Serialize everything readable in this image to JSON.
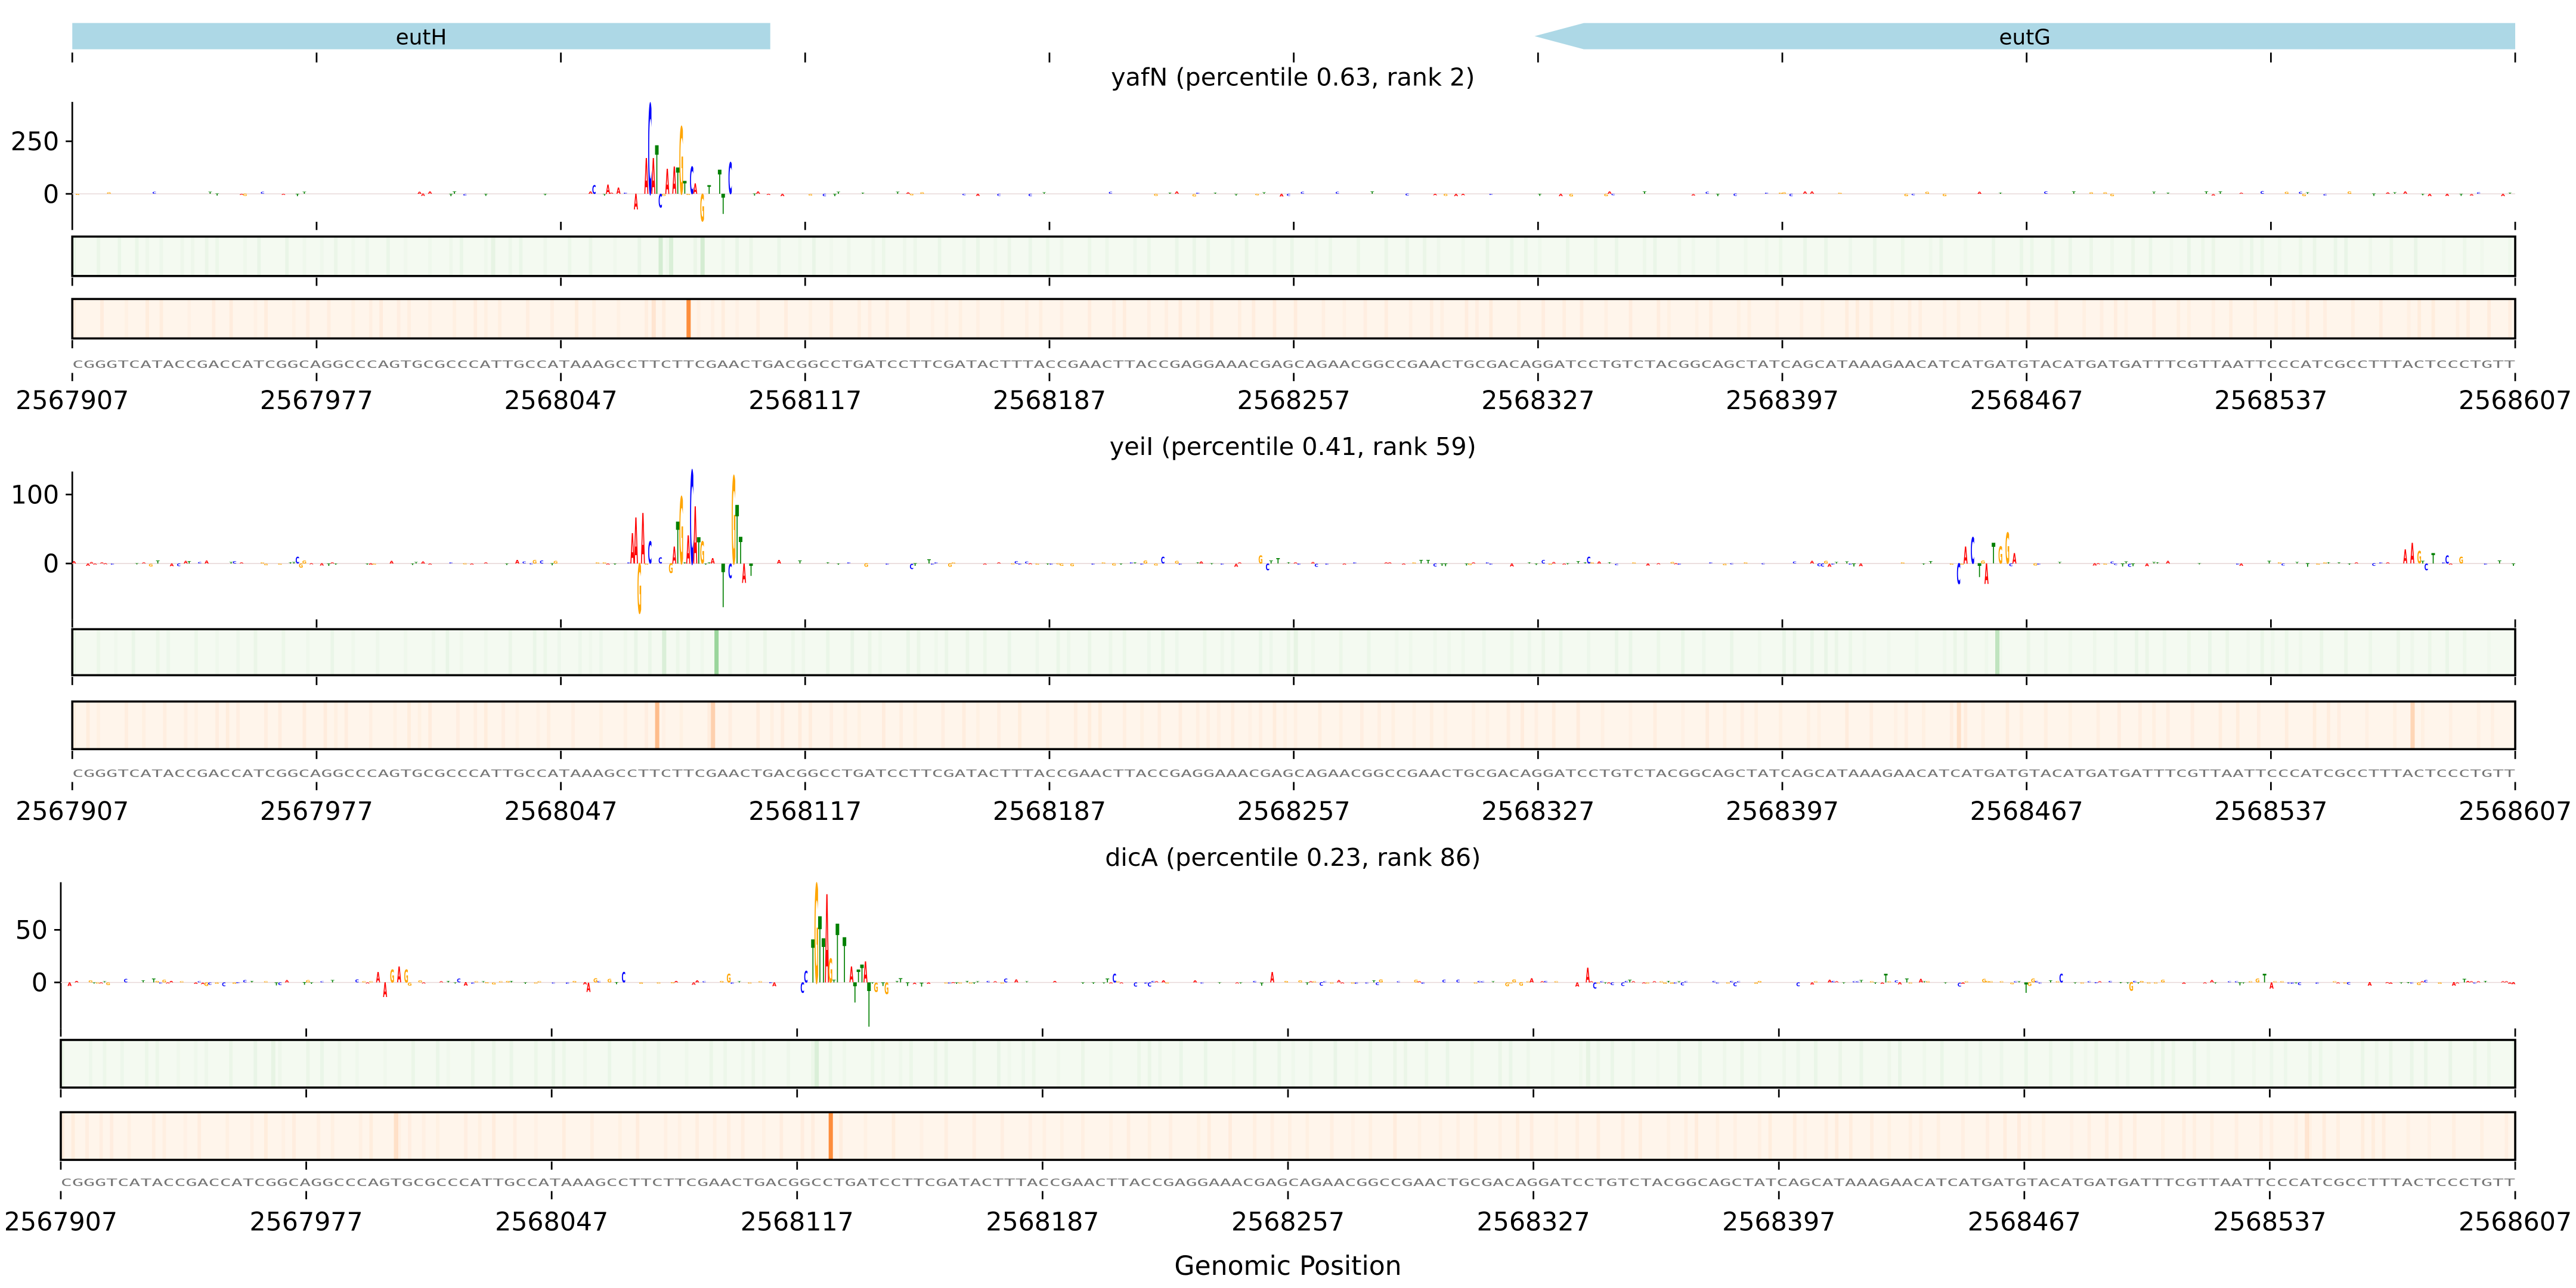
{
  "chart_data": {
    "type": "sequence-logo-tracks",
    "xlabel": "Genomic Position",
    "xlim": [
      2567907,
      2568607
    ],
    "x_ticks": [
      "2567907",
      "2567977",
      "2568047",
      "2568117",
      "2568187",
      "2568257",
      "2568327",
      "2568397",
      "2568467",
      "2568537",
      "2568607"
    ],
    "base_colors": {
      "A": "#ff0000",
      "C": "#0000ff",
      "G": "#ffa500",
      "T": "#008000"
    },
    "genes": [
      {
        "name": "eutH",
        "start_offset": 0,
        "end_offset": 200,
        "strand": "+",
        "color": "#add8e6"
      },
      {
        "name": "eutG",
        "start_offset": 419,
        "end_offset": 700,
        "strand": "-",
        "color": "#add8e6"
      }
    ],
    "sequence_text": "CGGGTCATACCGACCATCGGCAGGCCCAGTGCGCCCATTGCCATAAAGCCTTCTTCGAACTGACGGCCTGATCCTTCGATACTTTACCGAACTTACCGAGGAAACGAGCAGAACGGCCGAACTGCGACAGGATCCTGTCTACGGCAGCTATCAGCATAAAGAACATCATGATGTACATGATGATTTCGTTAATTCCCATCGCCTTTACTCCCTGTT",
    "panels": [
      {
        "title": "yafN (percentile 0.63, rank 2)",
        "yticks": [
          250,
          0
        ],
        "ytick_labels": [
          "250",
          "0"
        ],
        "noise_amplitude": 12,
        "peaks": [
          [
            149,
            40,
            "C"
          ],
          [
            153,
            45,
            "A"
          ],
          [
            156,
            30,
            "A"
          ],
          [
            161,
            -75,
            "A"
          ],
          [
            164,
            170,
            "A"
          ],
          [
            165,
            430,
            "C"
          ],
          [
            166,
            170,
            "A"
          ],
          [
            167,
            230,
            "T"
          ],
          [
            168,
            -65,
            "C"
          ],
          [
            170,
            120,
            "A"
          ],
          [
            172,
            130,
            "A"
          ],
          [
            173,
            125,
            "T"
          ],
          [
            174,
            320,
            "G"
          ],
          [
            175,
            60,
            "T"
          ],
          [
            177,
            130,
            "C"
          ],
          [
            178,
            50,
            "A"
          ],
          [
            180,
            -130,
            "G"
          ],
          [
            182,
            40,
            "T"
          ],
          [
            185,
            115,
            "T"
          ],
          [
            186,
            -95,
            "T"
          ],
          [
            188,
            150,
            "C"
          ]
        ],
        "green_stripes": [
          [
            168,
            0.25
          ],
          [
            171,
            0.2
          ],
          [
            180,
            0.25
          ],
          [
            120,
            0.1
          ]
        ],
        "orange_stripes": [
          [
            176,
            1.0
          ],
          [
            166,
            0.15
          ]
        ]
      },
      {
        "title": "yeiI (percentile 0.41, rank 59)",
        "yticks": [
          100,
          0
        ],
        "ytick_labels": [
          "100",
          "0"
        ],
        "noise_amplitude": 5,
        "peaks": [
          [
            64,
            10,
            "C"
          ],
          [
            65,
            -6,
            "G"
          ],
          [
            160,
            44,
            "A"
          ],
          [
            161,
            67,
            "A"
          ],
          [
            162,
            -72,
            "G"
          ],
          [
            163,
            73,
            "A"
          ],
          [
            165,
            32,
            "C"
          ],
          [
            168,
            9,
            "C"
          ],
          [
            171,
            -14,
            "G"
          ],
          [
            172,
            25,
            "A"
          ],
          [
            173,
            61,
            "T"
          ],
          [
            174,
            97,
            "G"
          ],
          [
            176,
            41,
            "A"
          ],
          [
            177,
            135,
            "C"
          ],
          [
            178,
            83,
            "A"
          ],
          [
            179,
            38,
            "T"
          ],
          [
            180,
            32,
            "G"
          ],
          [
            183,
            8,
            "A"
          ],
          [
            186,
            -63,
            "T"
          ],
          [
            188,
            -21,
            "C"
          ],
          [
            189,
            127,
            "G"
          ],
          [
            190,
            85,
            "T"
          ],
          [
            191,
            39,
            "T"
          ],
          [
            192,
            -28,
            "A"
          ],
          [
            194,
            -18,
            "T"
          ],
          [
            240,
            -8,
            "C"
          ],
          [
            245,
            6,
            "T"
          ],
          [
            312,
            10,
            "C"
          ],
          [
            340,
            12,
            "G"
          ],
          [
            342,
            -10,
            "C"
          ],
          [
            345,
            8,
            "T"
          ],
          [
            434,
            10,
            "C"
          ],
          [
            540,
            -30,
            "C"
          ],
          [
            542,
            25,
            "A"
          ],
          [
            544,
            38,
            "C"
          ],
          [
            546,
            -20,
            "T"
          ],
          [
            548,
            -30,
            "A"
          ],
          [
            550,
            30,
            "T"
          ],
          [
            552,
            25,
            "G"
          ],
          [
            554,
            45,
            "G"
          ],
          [
            556,
            15,
            "A"
          ],
          [
            668,
            20,
            "A"
          ],
          [
            670,
            30,
            "A"
          ],
          [
            672,
            18,
            "G"
          ],
          [
            674,
            -10,
            "C"
          ],
          [
            676,
            15,
            "T"
          ],
          [
            680,
            12,
            "C"
          ],
          [
            684,
            10,
            "G"
          ]
        ],
        "green_stripes": [
          [
            184,
            0.7
          ],
          [
            169,
            0.2
          ],
          [
            551,
            0.4
          ],
          [
            350,
            0.1
          ]
        ],
        "orange_stripes": [
          [
            167,
            0.55
          ],
          [
            183,
            0.35
          ],
          [
            540,
            0.2
          ],
          [
            670,
            0.3
          ]
        ]
      },
      {
        "title": "dicA (percentile 0.23, rank 86)",
        "yticks": [
          50,
          0
        ],
        "ytick_labels": [
          "50",
          "0"
        ],
        "noise_amplitude": 4,
        "peaks": [
          [
            90,
            10,
            "A"
          ],
          [
            92,
            -14,
            "A"
          ],
          [
            94,
            12,
            "G"
          ],
          [
            96,
            15,
            "A"
          ],
          [
            98,
            12,
            "G"
          ],
          [
            150,
            -9,
            "A"
          ],
          [
            160,
            10,
            "C"
          ],
          [
            190,
            8,
            "G"
          ],
          [
            211,
            -10,
            "C"
          ],
          [
            212,
            11,
            "C"
          ],
          [
            214,
            41,
            "T"
          ],
          [
            215,
            94,
            "G"
          ],
          [
            216,
            63,
            "T"
          ],
          [
            217,
            42,
            "T"
          ],
          [
            218,
            84,
            "A"
          ],
          [
            219,
            23,
            "G"
          ],
          [
            221,
            56,
            "T"
          ],
          [
            223,
            43,
            "T"
          ],
          [
            225,
            15,
            "A"
          ],
          [
            226,
            -19,
            "T"
          ],
          [
            227,
            12,
            "T"
          ],
          [
            228,
            17,
            "T"
          ],
          [
            229,
            20,
            "A"
          ],
          [
            230,
            -42,
            "T"
          ],
          [
            232,
            -9,
            "G"
          ],
          [
            235,
            -11,
            "G"
          ],
          [
            300,
            8,
            "C"
          ],
          [
            345,
            10,
            "A"
          ],
          [
            435,
            14,
            "A"
          ],
          [
            437,
            -6,
            "C"
          ],
          [
            520,
            8,
            "T"
          ],
          [
            560,
            -10,
            "T"
          ],
          [
            570,
            8,
            "C"
          ],
          [
            590,
            -8,
            "G"
          ],
          [
            628,
            8,
            "T"
          ],
          [
            630,
            -6,
            "A"
          ]
        ],
        "green_stripes": [
          [
            215,
            0.2
          ],
          [
            60,
            0.1
          ],
          [
            435,
            0.1
          ]
        ],
        "orange_stripes": [
          [
            219,
            1.0
          ],
          [
            95,
            0.2
          ],
          [
            640,
            0.15
          ]
        ]
      }
    ]
  }
}
